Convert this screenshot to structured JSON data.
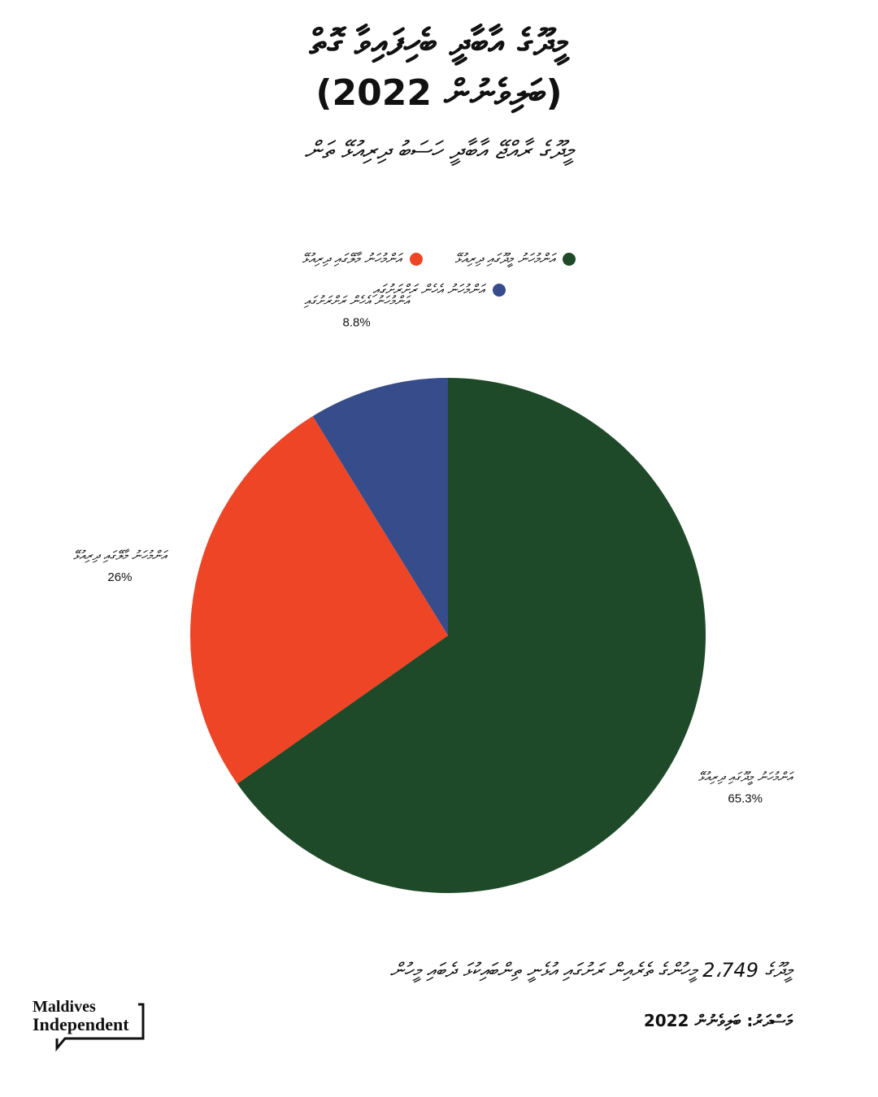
{
  "title_line1": "މީދޫގެ އާބާދީ ބެހިފައިވާ ގޮތް",
  "title_line2": "(ބަލިވެނުން 2022)",
  "subtitle": "މީދޫގެ ރާއްޖޭ އާބާދީ ހަސަބު ދިރިއުޅޭ ތަން",
  "chart_data": {
    "type": "pie",
    "series": [
      {
        "name": "އަންމުހަނު މީދޫގައި ދިރިއުޅޭ",
        "value": 65.3,
        "label": "65.3%",
        "color": "#1f4a29"
      },
      {
        "name": "އަންމުހަނު މާލޭގައި ދިރިއުޅޭ",
        "value": 26.0,
        "label": "26%",
        "color": "#ee4526"
      },
      {
        "name": "އަންމުހަނު އެހެން ރަށްރަށުގައި",
        "value": 8.8,
        "label": "8.8%",
        "color": "#374c8a"
      }
    ]
  },
  "legend": [
    {
      "text": "އަންމުހަނު މީދޫގައި ދިރިއުޅޭ",
      "color": "#1f4a29"
    },
    {
      "text": "އަންމުހަނު މާލޭގައި ދިރިއުޅޭ",
      "color": "#ee4526"
    },
    {
      "text": "އަންމުހަނު އެހެން ރަށްރަށުގައި",
      "color": "#374c8a"
    }
  ],
  "footnote": "މީދޫގެ 2،749 މީހުންގެ ތެރެއިން ރަށުގައި އުޅެނީ ތިންބައިކުޅަ ދެބައި މީހުން",
  "source": "މަސްދަރު: ބަލިވެނުން 2022",
  "logo": {
    "line1": "Maldives",
    "line2": "Independent"
  }
}
